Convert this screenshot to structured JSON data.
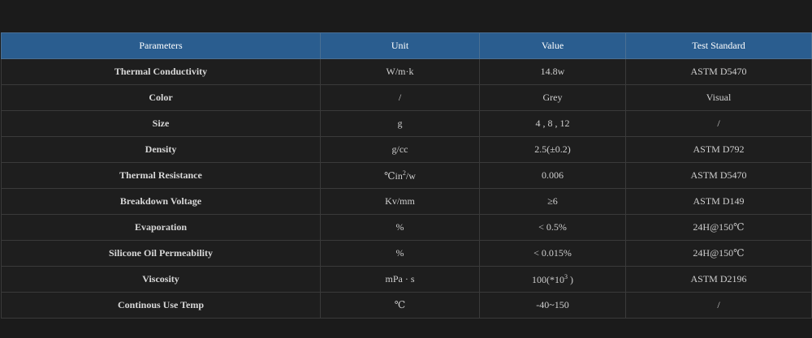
{
  "table": {
    "headers": [
      "Parameters",
      "Unit",
      "Value",
      "Test Standard"
    ],
    "rows": [
      {
        "parameter": "Thermal Conductivity",
        "unit": "W/m·k",
        "value": "14.8w",
        "standard": "ASTM D5470"
      },
      {
        "parameter": "Color",
        "unit": "/",
        "value": "Grey",
        "standard": "Visual"
      },
      {
        "parameter": "Size",
        "unit": "g",
        "value": "4 , 8 , 12",
        "standard": "/"
      },
      {
        "parameter": "Density",
        "unit": "g/cc",
        "value": "2.5(±0.2)",
        "standard": "ASTM D792"
      },
      {
        "parameter": "Thermal Resistance",
        "unit_prefix": "℃in",
        "unit_sup": "2",
        "unit_suffix": "/w",
        "value": "0.006",
        "standard": "ASTM D5470"
      },
      {
        "parameter": "Breakdown Voltage",
        "unit": "Kv/mm",
        "value": "≥6",
        "standard": "ASTM D149"
      },
      {
        "parameter": "Evaporation",
        "unit": "%",
        "value": "< 0.5%",
        "standard": "24H@150℃"
      },
      {
        "parameter": "Silicone Oil Permeability",
        "unit": "%",
        "value": "< 0.015%",
        "standard": "24H@150℃"
      },
      {
        "parameter": "Viscosity",
        "unit": "mPa · s",
        "value_prefix": "100(*10",
        "value_sup": "3",
        "value_suffix": " )",
        "standard": "ASTM D2196"
      },
      {
        "parameter": "Continous Use Temp",
        "unit": "℃",
        "value": "-40~150",
        "standard": "/"
      }
    ]
  }
}
